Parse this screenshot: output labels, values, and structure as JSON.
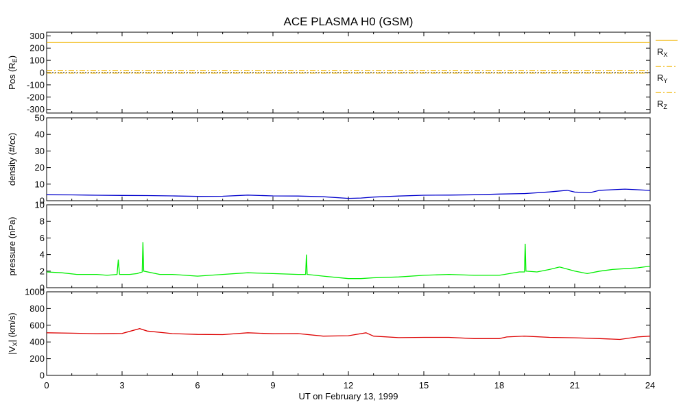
{
  "chart_data": {
    "title": "ACE PLASMA H0 (GSM)",
    "type": "line",
    "x": {
      "label": "UT on February 13, 1999",
      "ticks": [
        0,
        3,
        6,
        9,
        12,
        15,
        18,
        21,
        24
      ],
      "tick_labels": [
        "0",
        "3",
        "6",
        "9",
        "12",
        "15",
        "18",
        "21",
        "24"
      ],
      "range": [
        0,
        24
      ],
      "unit": "hours UT"
    },
    "panels": [
      {
        "id": "position",
        "type": "line",
        "ylabel": "Pos (R",
        "ylabel_sub": "E",
        "ylabel_tail": ")",
        "ylim": [
          -330,
          330
        ],
        "yticks": [
          -300,
          -200,
          -100,
          0,
          100,
          200,
          300
        ],
        "ytick_labels": [
          "-300",
          "-200",
          "-100",
          "0",
          "100",
          "200",
          "300"
        ],
        "series": [
          {
            "name": "R",
            "sub": "X",
            "color": "#f0b400",
            "dash": "solid",
            "points": [
              [
                0,
                247
              ],
              [
                24,
                247
              ]
            ]
          },
          {
            "name": "R",
            "sub": "Y",
            "color": "#f0b400",
            "dash": "dashdot",
            "points": [
              [
                0,
                19
              ],
              [
                24,
                19
              ]
            ]
          },
          {
            "name": "R",
            "sub": "Z",
            "color": "#f0b400",
            "dash": "dashdot",
            "points": [
              [
                0,
                -4
              ],
              [
                24,
                -4
              ]
            ]
          }
        ],
        "zero_line": true
      },
      {
        "id": "density",
        "type": "line",
        "ylabel": "density (#/cc)",
        "ylim": [
          0,
          50
        ],
        "yticks": [
          0,
          10,
          20,
          30,
          40,
          50
        ],
        "ytick_labels": [
          "0",
          "10",
          "20",
          "30",
          "40",
          "50"
        ],
        "series": [
          {
            "color": "#0000cc",
            "points": [
              [
                0,
                3.6
              ],
              [
                1,
                3.5
              ],
              [
                2,
                3.3
              ],
              [
                3,
                3.2
              ],
              [
                4,
                3.1
              ],
              [
                5,
                2.9
              ],
              [
                6,
                2.6
              ],
              [
                7,
                2.7
              ],
              [
                8,
                3.4
              ],
              [
                9,
                2.9
              ],
              [
                10,
                2.8
              ],
              [
                11,
                2.4
              ],
              [
                12,
                1.4
              ],
              [
                12.5,
                1.6
              ],
              [
                13,
                2.2
              ],
              [
                14,
                2.8
              ],
              [
                15,
                3.3
              ],
              [
                16,
                3.4
              ],
              [
                17,
                3.6
              ],
              [
                18,
                4.0
              ],
              [
                19,
                4.3
              ],
              [
                20,
                5.3
              ],
              [
                20.7,
                6.3
              ],
              [
                21,
                5.2
              ],
              [
                21.6,
                4.8
              ],
              [
                22,
                6.3
              ],
              [
                23,
                7.0
              ],
              [
                23.5,
                6.6
              ],
              [
                24,
                6.2
              ]
            ]
          }
        ]
      },
      {
        "id": "pressure",
        "type": "line",
        "ylabel": "pressure (nPa)",
        "ylim": [
          0,
          10
        ],
        "yticks": [
          0,
          2,
          4,
          6,
          8,
          10
        ],
        "ytick_labels": [
          "0",
          "2",
          "4",
          "6",
          "8",
          "10"
        ],
        "series": [
          {
            "color": "#00ee00",
            "points": [
              [
                0,
                1.9
              ],
              [
                0.6,
                1.8
              ],
              [
                1.2,
                1.6
              ],
              [
                2,
                1.6
              ],
              [
                2.4,
                1.5
              ],
              [
                2.8,
                1.6
              ],
              [
                2.85,
                3.4
              ],
              [
                2.9,
                1.6
              ],
              [
                3.3,
                1.6
              ],
              [
                3.6,
                1.7
              ],
              [
                3.8,
                1.9
              ],
              [
                3.83,
                5.5
              ],
              [
                3.86,
                2.0
              ],
              [
                4.5,
                1.6
              ],
              [
                5,
                1.6
              ],
              [
                6,
                1.4
              ],
              [
                7,
                1.6
              ],
              [
                8,
                1.8
              ],
              [
                9,
                1.7
              ],
              [
                10,
                1.6
              ],
              [
                10.3,
                1.6
              ],
              [
                10.33,
                4.0
              ],
              [
                10.36,
                1.6
              ],
              [
                11,
                1.4
              ],
              [
                12,
                1.1
              ],
              [
                12.5,
                1.1
              ],
              [
                13,
                1.2
              ],
              [
                14,
                1.3
              ],
              [
                15,
                1.5
              ],
              [
                16,
                1.6
              ],
              [
                17,
                1.5
              ],
              [
                18,
                1.5
              ],
              [
                18.8,
                1.9
              ],
              [
                19,
                1.9
              ],
              [
                19.03,
                5.3
              ],
              [
                19.06,
                2.0
              ],
              [
                19.5,
                1.9
              ],
              [
                20,
                2.2
              ],
              [
                20.4,
                2.5
              ],
              [
                21,
                2.0
              ],
              [
                21.5,
                1.7
              ],
              [
                22,
                2.0
              ],
              [
                22.5,
                2.2
              ],
              [
                23,
                2.3
              ],
              [
                23.5,
                2.4
              ],
              [
                24,
                2.6
              ]
            ]
          }
        ]
      },
      {
        "id": "velocity",
        "type": "line",
        "ylabel": "|V",
        "ylabel_sub": "X",
        "ylabel_tail": "| (km/s)",
        "ylim": [
          0,
          1000
        ],
        "yticks": [
          0,
          200,
          400,
          600,
          800,
          1000
        ],
        "ytick_labels": [
          "0",
          "200",
          "400",
          "600",
          "800",
          "1000"
        ],
        "series": [
          {
            "color": "#dd0000",
            "points": [
              [
                0,
                510
              ],
              [
                1,
                505
              ],
              [
                2,
                498
              ],
              [
                3,
                502
              ],
              [
                3.7,
                560
              ],
              [
                4,
                530
              ],
              [
                5,
                500
              ],
              [
                6,
                490
              ],
              [
                7,
                488
              ],
              [
                8,
                510
              ],
              [
                9,
                498
              ],
              [
                10,
                500
              ],
              [
                11,
                470
              ],
              [
                12,
                475
              ],
              [
                12.7,
                510
              ],
              [
                13,
                470
              ],
              [
                14,
                452
              ],
              [
                15,
                455
              ],
              [
                16,
                455
              ],
              [
                17,
                440
              ],
              [
                18,
                440
              ],
              [
                18.3,
                460
              ],
              [
                19,
                470
              ],
              [
                20,
                455
              ],
              [
                21,
                450
              ],
              [
                22,
                440
              ],
              [
                22.8,
                430
              ],
              [
                23.5,
                460
              ],
              [
                24,
                470
              ]
            ]
          }
        ]
      }
    ]
  }
}
